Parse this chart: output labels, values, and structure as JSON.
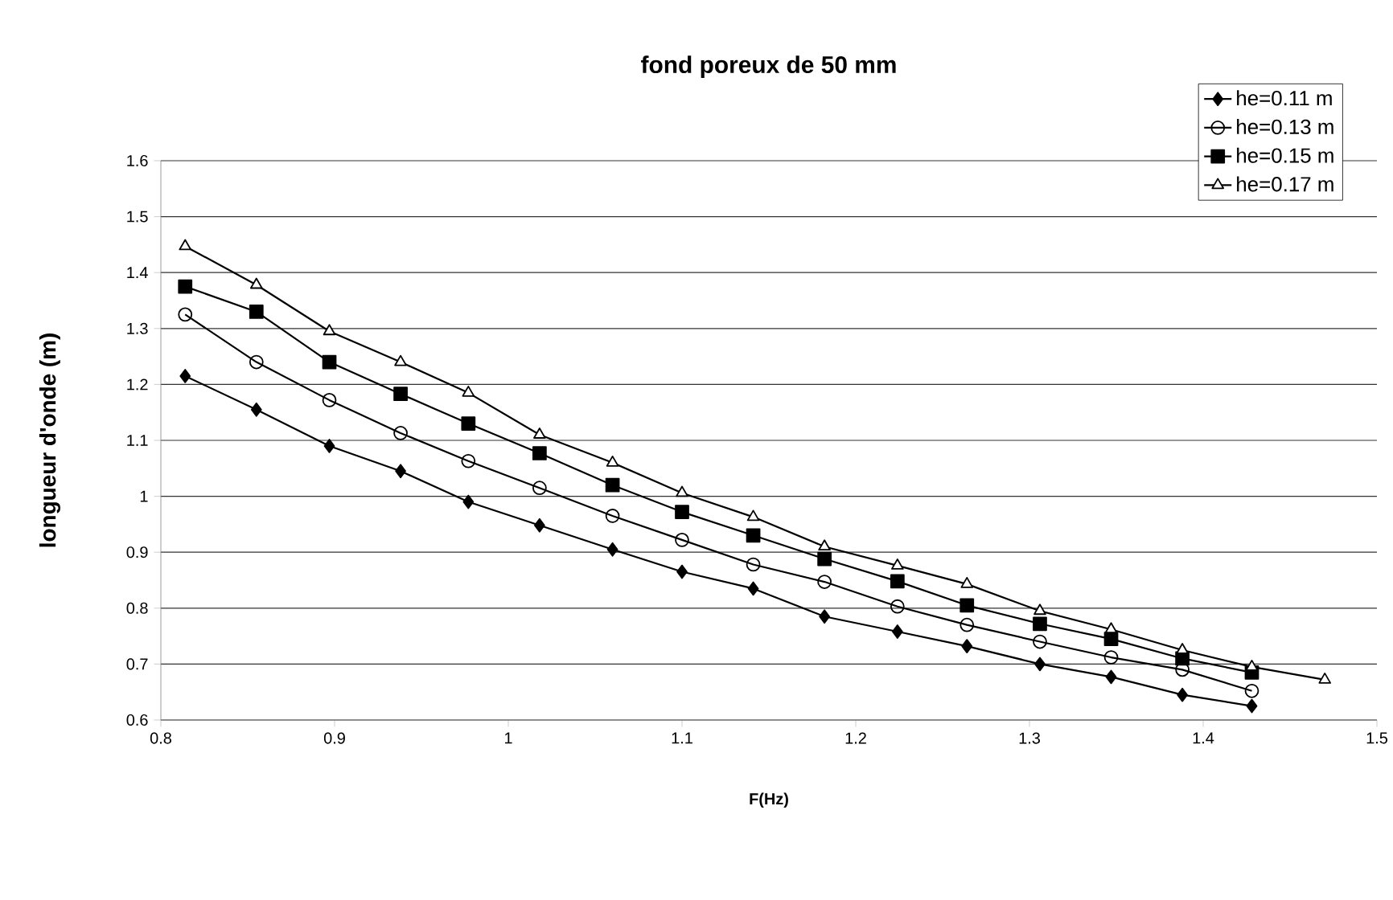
{
  "chart_data": {
    "type": "line",
    "title": "fond poreux de 50 mm",
    "xlabel": "F(Hz)",
    "ylabel": "longueur d'onde (m)",
    "xlim": [
      0.8,
      1.5
    ],
    "ylim": [
      0.6,
      1.6
    ],
    "xticks": [
      0.8,
      0.9,
      1,
      1.1,
      1.2,
      1.3,
      1.4,
      1.5
    ],
    "yticks": [
      0.6,
      0.7,
      0.8,
      0.9,
      1,
      1.1,
      1.2,
      1.3,
      1.4,
      1.5,
      1.6
    ],
    "grid": "y",
    "legend": "top right",
    "series": [
      {
        "name": "he=0.11 m",
        "color": "#000000",
        "marker": "diamond",
        "x": [
          0.814,
          0.855,
          0.897,
          0.938,
          0.977,
          1.018,
          1.06,
          1.1,
          1.141,
          1.182,
          1.224,
          1.264,
          1.306,
          1.347,
          1.388,
          1.428
        ],
        "values": [
          1.215,
          1.155,
          1.09,
          1.045,
          0.99,
          0.948,
          0.905,
          0.865,
          0.835,
          0.785,
          0.758,
          0.732,
          0.7,
          0.677,
          0.645,
          0.625
        ]
      },
      {
        "name": "he=0.13 m",
        "color": "#000000",
        "marker": "circle",
        "x": [
          0.814,
          0.855,
          0.897,
          0.938,
          0.977,
          1.018,
          1.06,
          1.1,
          1.141,
          1.182,
          1.224,
          1.264,
          1.306,
          1.347,
          1.388,
          1.428
        ],
        "values": [
          1.325,
          1.24,
          1.172,
          1.113,
          1.063,
          1.015,
          0.965,
          0.922,
          0.878,
          0.847,
          0.803,
          0.77,
          0.74,
          0.712,
          0.69,
          0.652
        ]
      },
      {
        "name": "he=0.15 m",
        "color": "#000000",
        "marker": "square",
        "x": [
          0.814,
          0.855,
          0.897,
          0.938,
          0.977,
          1.018,
          1.06,
          1.1,
          1.141,
          1.182,
          1.224,
          1.264,
          1.306,
          1.347,
          1.388,
          1.428
        ],
        "values": [
          1.375,
          1.33,
          1.24,
          1.183,
          1.13,
          1.077,
          1.02,
          0.972,
          0.93,
          0.888,
          0.848,
          0.805,
          0.772,
          0.745,
          0.71,
          0.685
        ]
      },
      {
        "name": "he=0.17 m",
        "color": "#000000",
        "marker": "triangle",
        "x": [
          0.814,
          0.855,
          0.897,
          0.938,
          0.977,
          1.018,
          1.06,
          1.1,
          1.141,
          1.182,
          1.224,
          1.264,
          1.306,
          1.347,
          1.388,
          1.428,
          1.47
        ],
        "values": [
          1.447,
          1.378,
          1.295,
          1.24,
          1.185,
          1.11,
          1.06,
          1.006,
          0.963,
          0.91,
          0.876,
          0.843,
          0.795,
          0.762,
          0.725,
          0.695,
          0.672
        ]
      }
    ]
  }
}
